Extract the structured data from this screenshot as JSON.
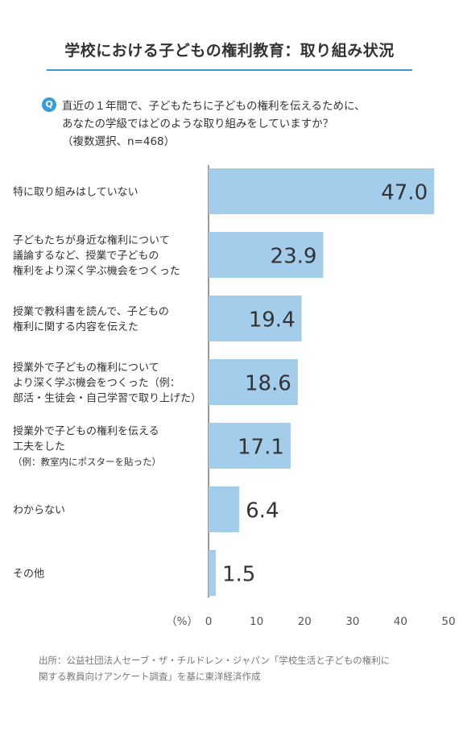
{
  "header": {
    "title": "学校における子どもの権利教育：取り組み状況"
  },
  "question": {
    "badge": "Q",
    "lines": [
      "直近の１年間で、子どもたちに子どもの権利を伝えるために、",
      "あなたの学級ではどのような取り組みをしていますか？",
      "（複数選択、n=468）"
    ]
  },
  "chart_data": {
    "type": "bar",
    "orientation": "horizontal",
    "unit_label": "（%）",
    "categories": [
      [
        "特に取り組みはしていない"
      ],
      [
        "子どもたちが身近な権利について",
        "議論するなど、授業で子どもの",
        "権利をより深く学ぶ機会をつくった"
      ],
      [
        "授業で教科書を読んで、子どもの",
        "権利に関する内容を伝えた"
      ],
      [
        "授業外で子どもの権利について",
        "より深く学ぶ機会をつくった（例：",
        "部活・生徒会・自己学習で取り上げた）"
      ],
      [
        "授業外で子どもの権利を伝える",
        "工夫をした",
        "（例：教室内にポスターを貼った）"
      ],
      [
        "わからない"
      ],
      [
        "その他"
      ]
    ],
    "values": [
      47.0,
      23.9,
      19.4,
      18.6,
      17.1,
      6.4,
      1.5
    ],
    "value_labels": [
      "47.0",
      "23.9",
      "19.4",
      "18.6",
      "17.1",
      "6.4",
      "1.5"
    ],
    "xlim": [
      0,
      50
    ],
    "xticks": [
      "0",
      "10",
      "20",
      "30",
      "40",
      "50"
    ],
    "bar_color": "#a4cdec",
    "grid": false
  },
  "footer": {
    "source_lines": [
      "出所：公益社団法人セーブ・ザ・チルドレン・ジャパン「学校生活と子どもの権利に",
      "関する教員向けアンケート調査」を基に東洋経済作成"
    ]
  }
}
